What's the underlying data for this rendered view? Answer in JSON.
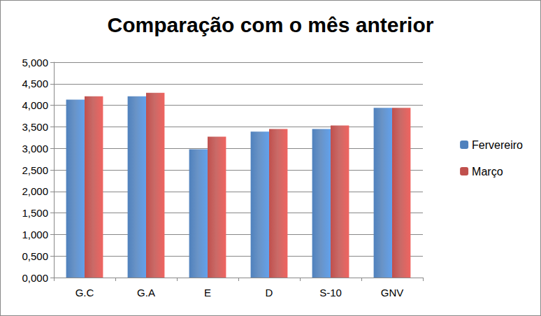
{
  "chart_data": {
    "type": "bar",
    "title": "Comparação com o mês anterior",
    "categories": [
      "G.C",
      "G.A",
      "E",
      "D",
      "S-10",
      "GNV"
    ],
    "series": [
      {
        "name": "Fervereiro",
        "color": "#4f81bd",
        "values": [
          4.13,
          4.21,
          2.98,
          3.39,
          3.45,
          3.94
        ]
      },
      {
        "name": "Março",
        "color": "#c0504d",
        "values": [
          4.21,
          4.29,
          3.27,
          3.45,
          3.53,
          3.94
        ]
      }
    ],
    "ylim": [
      0,
      5
    ],
    "yticks": [
      {
        "value": 0,
        "label": "0,000"
      },
      {
        "value": 0.5,
        "label": "0,500"
      },
      {
        "value": 1,
        "label": "1,000"
      },
      {
        "value": 1.5,
        "label": "1,500"
      },
      {
        "value": 2,
        "label": "2,000"
      },
      {
        "value": 2.5,
        "label": "2,500"
      },
      {
        "value": 3,
        "label": "3,000"
      },
      {
        "value": 3.5,
        "label": "3,500"
      },
      {
        "value": 4,
        "label": "4,000"
      },
      {
        "value": 4.5,
        "label": "4,500"
      },
      {
        "value": 5,
        "label": "5,000"
      }
    ],
    "grid": true,
    "legend": "right"
  }
}
